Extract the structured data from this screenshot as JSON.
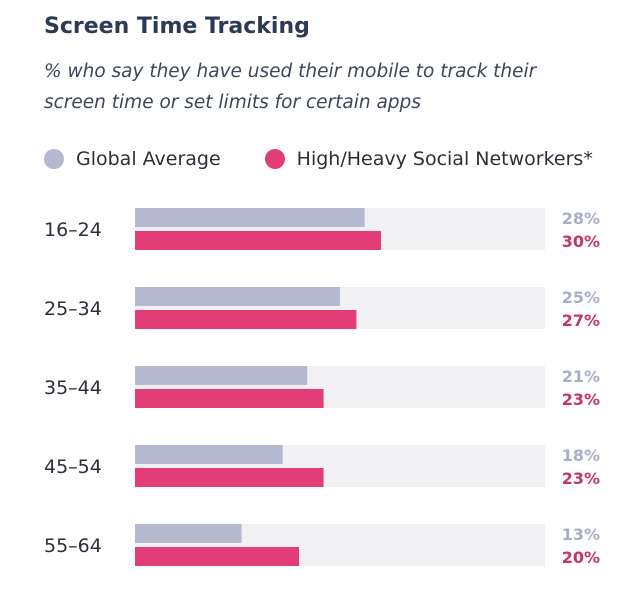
{
  "chart_data": {
    "type": "bar",
    "orientation": "horizontal",
    "title": "Screen Time Tracking",
    "subtitle_lines": [
      "% who say they have used their mobile to track their",
      "screen time or set limits for certain apps"
    ],
    "categories": [
      "16–24",
      "25–34",
      "35–44",
      "45–54",
      "55–64"
    ],
    "series": [
      {
        "name": "Global Average",
        "values": [
          28,
          25,
          21,
          18,
          13
        ],
        "labels": [
          "28%",
          "25%",
          "21%",
          "18%",
          "13%"
        ],
        "color": "#b4b9d0",
        "label_color": "#a9aec6"
      },
      {
        "name": "High/Heavy Social Networkers*",
        "values": [
          30,
          27,
          23,
          23,
          20
        ],
        "labels": [
          "30%",
          "27%",
          "23%",
          "23%",
          "20%"
        ],
        "color": "#e23d76",
        "label_color": "#c4356a"
      }
    ],
    "xlim": [
      0,
      50
    ],
    "track_color": "#f1f1f3",
    "legend_position": "top-left",
    "xlabel": "",
    "ylabel": "",
    "grid": false
  }
}
